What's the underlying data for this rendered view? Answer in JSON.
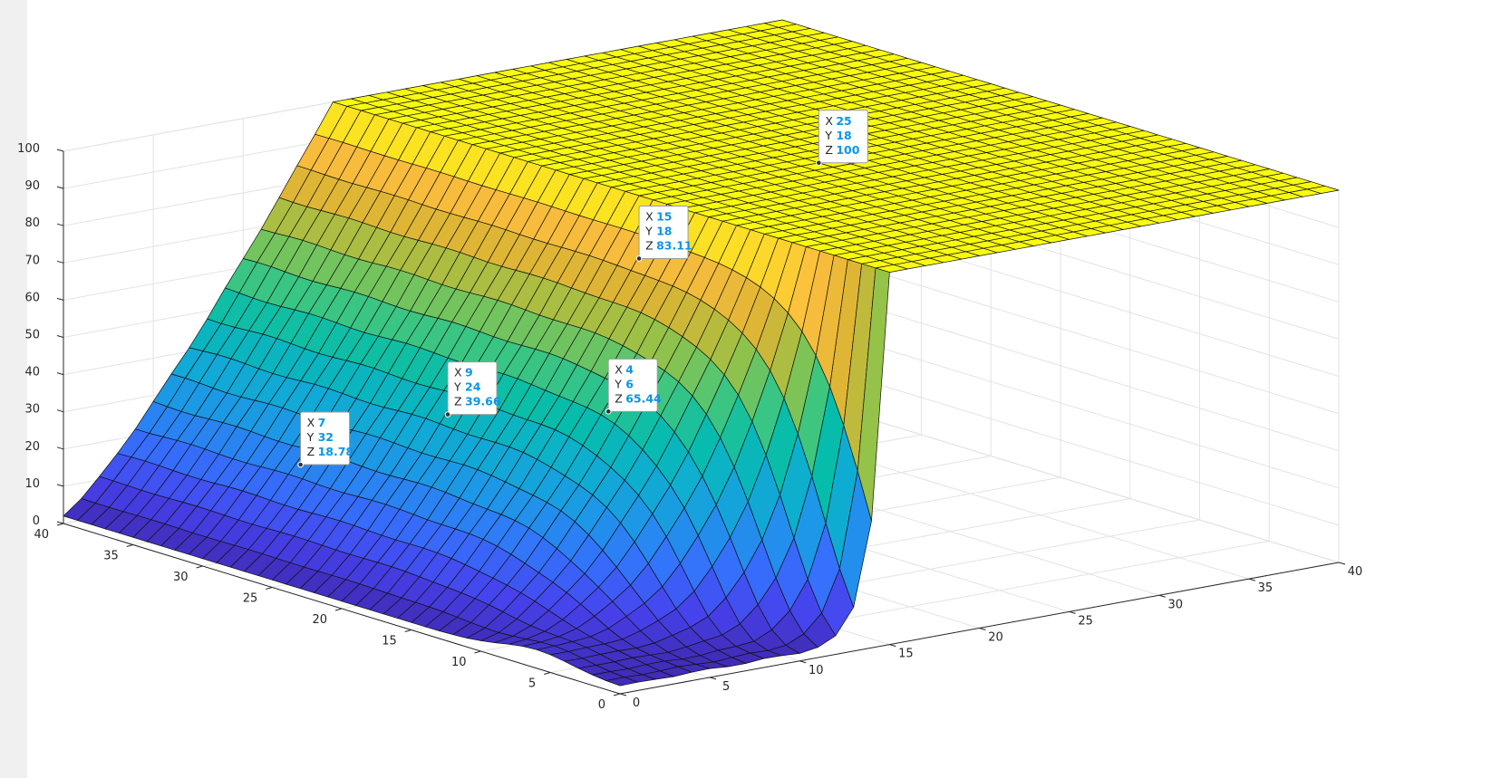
{
  "figure": {
    "background": "#f0f0f0",
    "axes_background": "#ffffff"
  },
  "chart_data": {
    "type": "surface",
    "title": "",
    "xlabel": "",
    "ylabel": "",
    "zlabel": "",
    "grid": true,
    "colormap": "parula",
    "xlim": [
      0,
      40
    ],
    "ylim": [
      0,
      40
    ],
    "zlim": [
      0,
      100
    ],
    "x_ticks": [
      "0",
      "5",
      "10",
      "15",
      "20",
      "25",
      "30",
      "35",
      "40"
    ],
    "y_ticks": [
      "0",
      "5",
      "10",
      "15",
      "20",
      "25",
      "30",
      "35",
      "40"
    ],
    "z_ticks": [
      "0",
      "10",
      "20",
      "30",
      "40",
      "50",
      "60",
      "70",
      "80",
      "90",
      "100"
    ],
    "surface_regions": [
      {
        "description": "plateau",
        "x_range": [
          15,
          40
        ],
        "y_range": [
          0,
          40
        ],
        "z": 100
      },
      {
        "description": "ramp",
        "x_range": [
          0,
          15
        ],
        "y_range": [
          0,
          40
        ],
        "z_range": [
          2,
          100
        ]
      }
    ],
    "datatips": [
      {
        "x": "25",
        "y": "18",
        "z": "100"
      },
      {
        "x": "15",
        "y": "18",
        "z": "83.11"
      },
      {
        "x": "9",
        "y": "24",
        "z": "39.66"
      },
      {
        "x": "4",
        "y": "6",
        "z": "65.44"
      },
      {
        "x": "7",
        "y": "32",
        "z": "18.78"
      }
    ],
    "datatip_labels": {
      "x": "X",
      "y": "Y",
      "z": "Z"
    }
  }
}
